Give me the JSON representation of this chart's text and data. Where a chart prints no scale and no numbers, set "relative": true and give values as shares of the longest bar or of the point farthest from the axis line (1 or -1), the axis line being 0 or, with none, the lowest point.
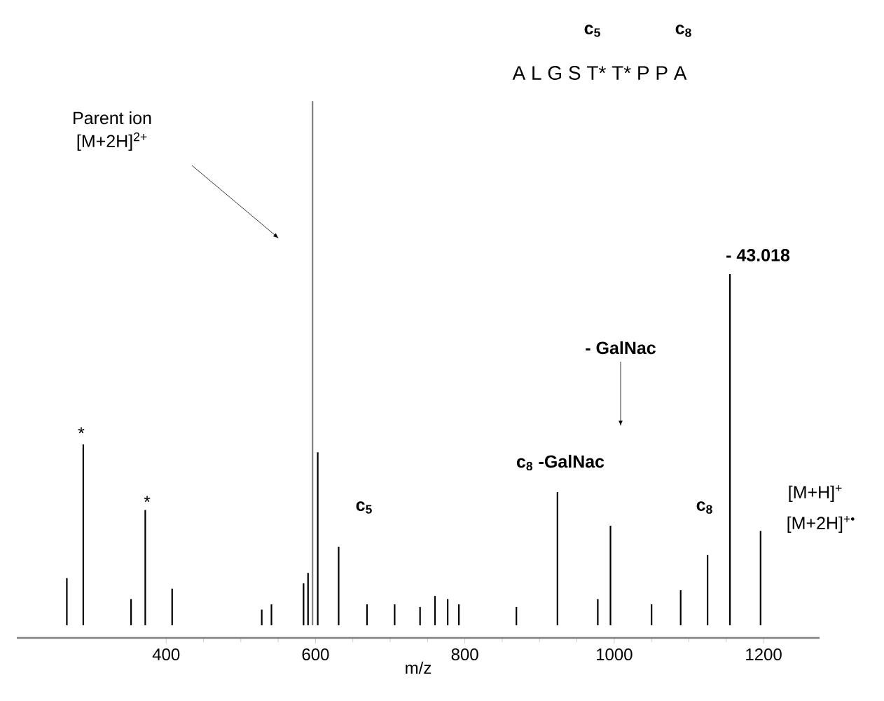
{
  "chart_data": {
    "type": "bar",
    "relative": true,
    "xlabel": "m/z",
    "x": [
      267,
      289,
      353,
      372,
      408,
      528,
      541,
      584,
      590,
      596,
      603,
      631,
      669,
      706,
      740,
      760,
      777,
      792,
      869,
      924,
      978,
      995,
      1050,
      1089,
      1125,
      1155,
      1196
    ],
    "values": [
      0.09,
      0.345,
      0.05,
      0.22,
      0.07,
      0.03,
      0.04,
      0.08,
      0.1,
      1.0,
      0.33,
      0.15,
      0.04,
      0.04,
      0.035,
      0.056,
      0.05,
      0.04,
      0.035,
      0.254,
      0.05,
      0.19,
      0.04,
      0.067,
      0.134,
      0.67,
      0.18
    ],
    "colors": [
      "#000000",
      "#000000",
      "#000000",
      "#000000",
      "#000000",
      "#000000",
      "#000000",
      "#000000",
      "#000000",
      "#808080",
      "#000000",
      "#000000",
      "#000000",
      "#000000",
      "#000000",
      "#000000",
      "#000000",
      "#000000",
      "#000000",
      "#000000",
      "#000000",
      "#000000",
      "#000000",
      "#000000",
      "#000000",
      "#000000",
      "#000000"
    ],
    "xlim": [
      200,
      1275
    ],
    "xticks": [
      {
        "value": 400,
        "label": "400"
      },
      {
        "value": 600,
        "label": "600"
      },
      {
        "value": 800,
        "label": "800"
      },
      {
        "value": 1000,
        "label": "1000"
      },
      {
        "value": 1200,
        "label": "1200"
      }
    ],
    "annotations": [
      "Parent ion",
      "[M+2H]$^{2+}$",
      "c$_{5}$",
      "c$_{8}$",
      "A L G S T* T* P P A",
      "- 43.018",
      "- GalNac",
      "c$_{8}$ -GalNac",
      "c$_{5}$",
      "c$_{8}$",
      "[M+H]$^{+}$",
      "[M+2H]$^{+•}$",
      "*",
      "*"
    ]
  }
}
